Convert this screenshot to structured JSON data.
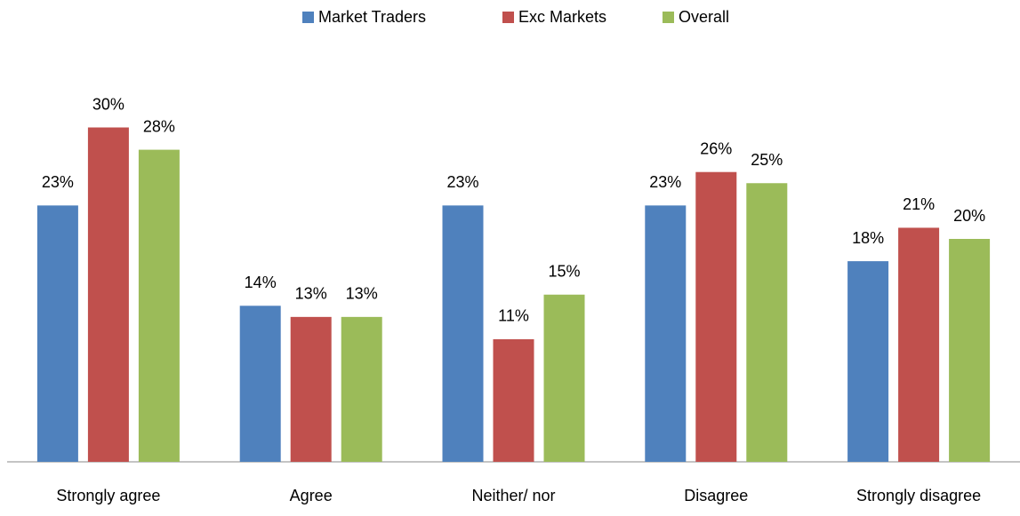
{
  "chart_data": {
    "type": "bar",
    "categories": [
      "Strongly agree",
      "Agree",
      "Neither/ nor",
      "Disagree",
      "Strongly disagree"
    ],
    "series": [
      {
        "name": "Market Traders",
        "color": "#4f81bd",
        "values": [
          23,
          14,
          23,
          23,
          18
        ],
        "value_labels": [
          "23%",
          "14%",
          "23%",
          "23%",
          "18%"
        ]
      },
      {
        "name": "Exc Markets",
        "color": "#c0504d",
        "values": [
          30,
          13,
          11,
          26,
          21
        ],
        "value_labels": [
          "30%",
          "13%",
          "11%",
          "26%",
          "21%"
        ]
      },
      {
        "name": "Overall",
        "color": "#9bbb59",
        "values": [
          28,
          13,
          15,
          25,
          20
        ],
        "value_labels": [
          "28%",
          "13%",
          "15%",
          "25%",
          "20%"
        ]
      }
    ],
    "legend": "top"
  }
}
